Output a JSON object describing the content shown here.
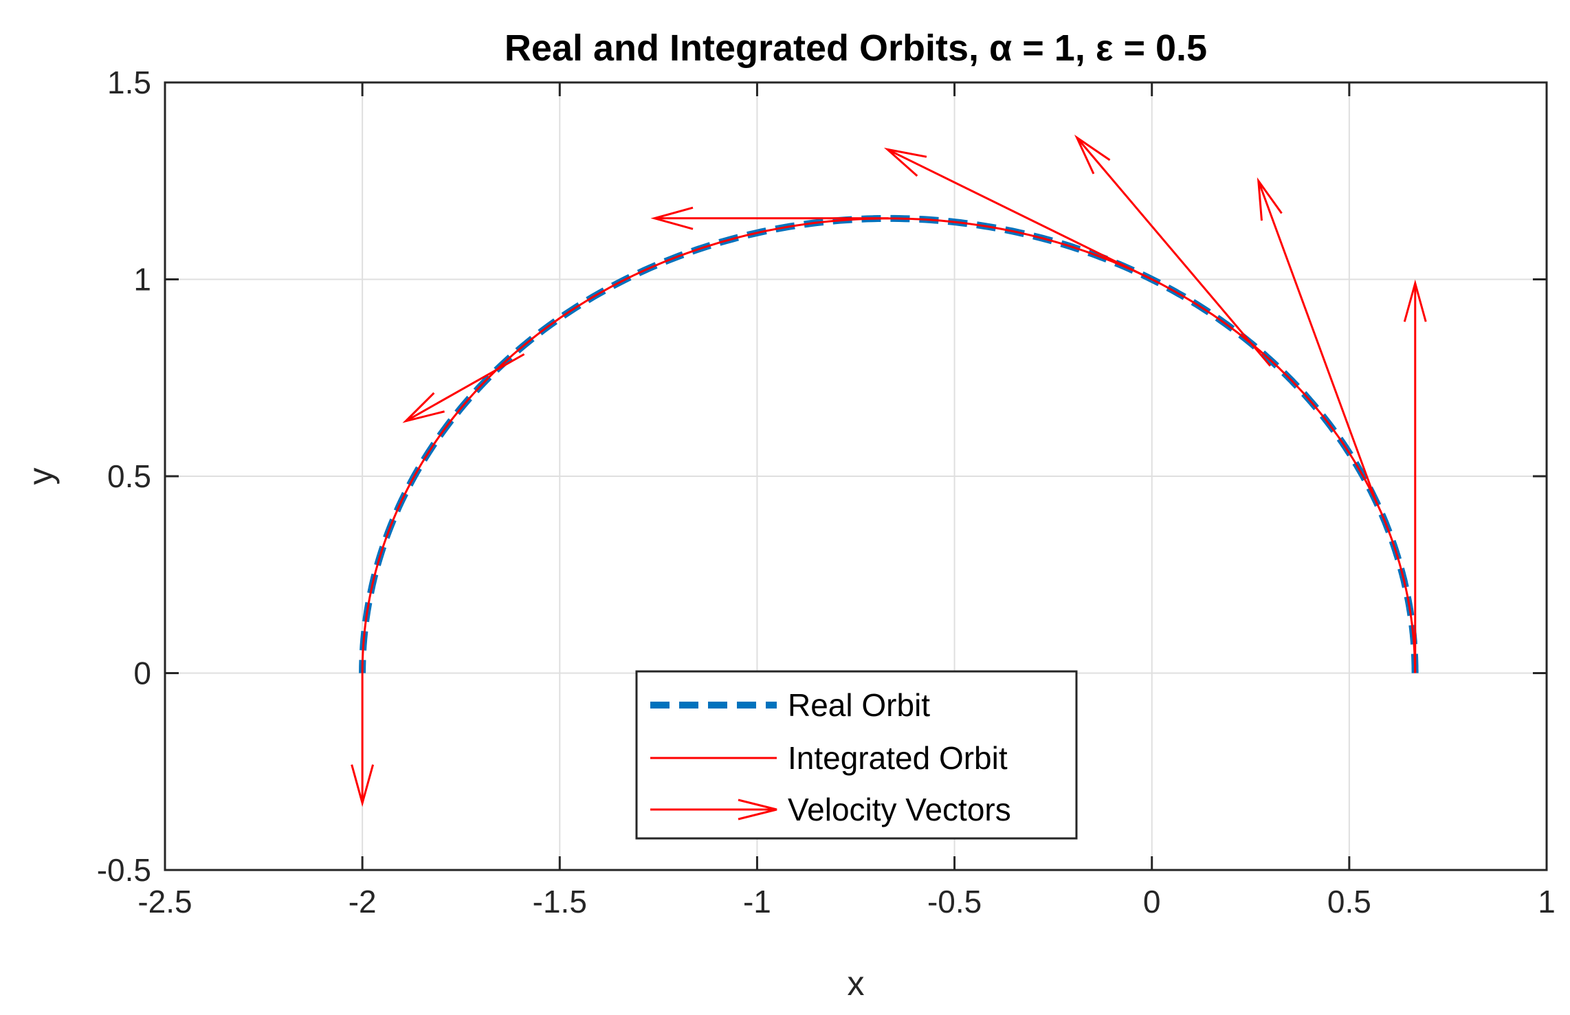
{
  "chart_data": {
    "type": "line",
    "title": "Real and Integrated Orbits, α = 1, ε = 0.5",
    "xlabel": "x",
    "ylabel": "y",
    "xlim": [
      -2.5,
      1
    ],
    "ylim": [
      -0.5,
      1.5
    ],
    "grid": true,
    "legend_position": "bottom-center",
    "xticks": [
      -2.5,
      -2,
      -1.5,
      -1,
      -0.5,
      0,
      0.5,
      1
    ],
    "xtick_labels": [
      "-2.5",
      "-2",
      "-1.5",
      "-1",
      "-0.5",
      "0",
      "0.5",
      "1"
    ],
    "yticks": [
      -0.5,
      0,
      0.5,
      1,
      1.5
    ],
    "ytick_labels": [
      "-0.5",
      "0",
      "0.5",
      "1",
      "1.5"
    ],
    "orbit": {
      "alpha": 1,
      "epsilon": 0.5,
      "theta_range": [
        0,
        180
      ]
    },
    "series": [
      {
        "name": "Real Orbit",
        "style": "dashed",
        "color": "#0072BD"
      },
      {
        "name": "Integrated Orbit",
        "style": "solid",
        "color": "#FF0000"
      },
      {
        "name": "Velocity Vectors",
        "style": "arrow",
        "color": "#FF0000"
      }
    ],
    "velocity_vectors": [
      {
        "x": 0.667,
        "y": 0.0,
        "x_end": 0.667,
        "y_end": 0.99
      },
      {
        "x": 0.57,
        "y": 0.43,
        "x_end": 0.27,
        "y_end": 1.25
      },
      {
        "x": 0.3,
        "y": 0.78,
        "x_end": -0.19,
        "y_end": 1.36
      },
      {
        "x": 0.0,
        "y": 1.0,
        "x_end": -0.67,
        "y_end": 1.33
      },
      {
        "x": -0.667,
        "y": 1.155,
        "x_end": -1.26,
        "y_end": 1.155
      },
      {
        "x": -1.59,
        "y": 0.81,
        "x_end": -1.89,
        "y_end": 0.64
      },
      {
        "x": -2.0,
        "y": 0.0,
        "x_end": -2.0,
        "y_end": -0.33
      }
    ]
  }
}
